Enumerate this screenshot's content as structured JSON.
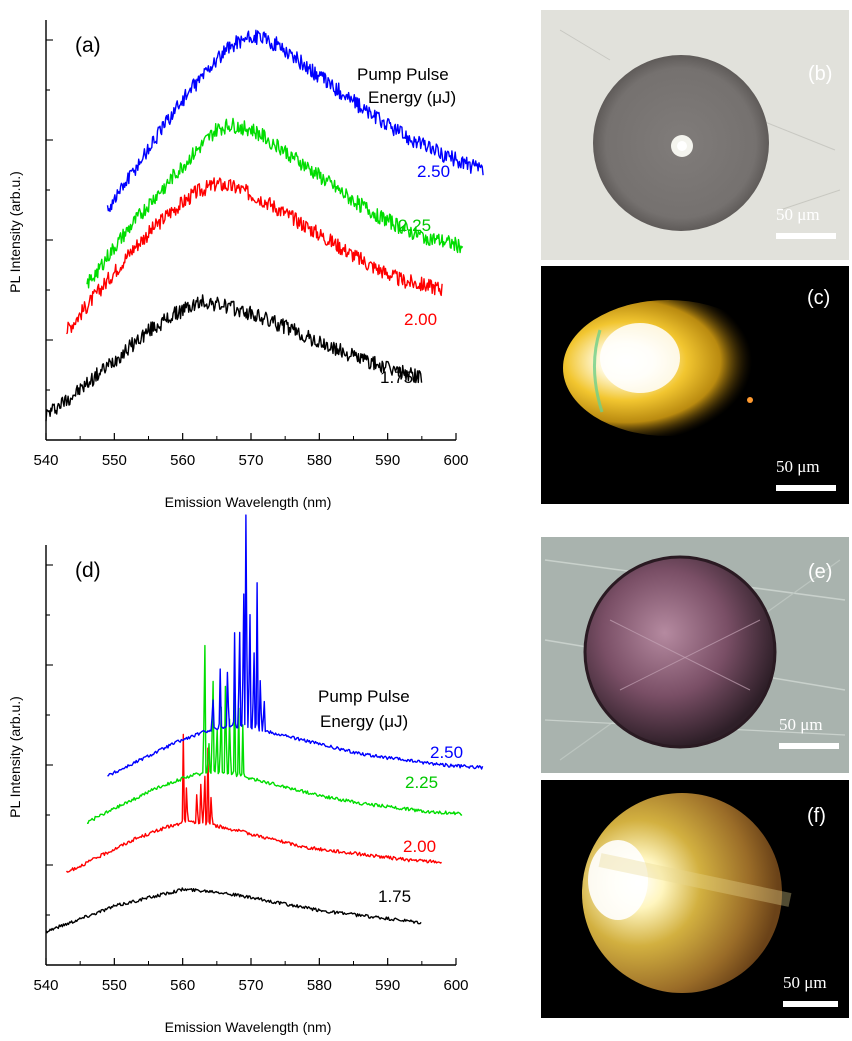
{
  "chart_data": [
    {
      "panel": "(a)",
      "type": "line",
      "xlabel": "Emission Wavelength (nm)",
      "ylabel": "PL Intensity (arb.u.)",
      "xlim": [
        540,
        600
      ],
      "xticks": [
        "540",
        "550",
        "560",
        "570",
        "580",
        "590",
        "600"
      ],
      "legend_title": [
        "Pump Pulse",
        "Energy (μJ)"
      ],
      "series": [
        {
          "name": "1.75",
          "color": "#000000",
          "x": [
            540,
            545,
            550,
            555,
            560,
            563,
            566,
            570,
            575,
            580,
            585,
            590,
            595
          ],
          "y": [
            0.06,
            0.12,
            0.19,
            0.26,
            0.31,
            0.33,
            0.32,
            0.3,
            0.27,
            0.23,
            0.2,
            0.17,
            0.15
          ]
        },
        {
          "name": "2.00",
          "color": "#ff0000",
          "x": [
            543,
            548,
            553,
            558,
            562,
            565,
            568,
            572,
            577,
            582,
            587,
            592,
            598
          ],
          "y": [
            0.26,
            0.36,
            0.46,
            0.54,
            0.59,
            0.61,
            0.6,
            0.57,
            0.52,
            0.47,
            0.42,
            0.38,
            0.36
          ]
        },
        {
          "name": "2.25",
          "color": "#00dd00",
          "x": [
            546,
            551,
            556,
            561,
            565,
            567,
            570,
            574,
            579,
            584,
            589,
            594,
            601
          ],
          "y": [
            0.37,
            0.48,
            0.58,
            0.67,
            0.74,
            0.75,
            0.74,
            0.7,
            0.64,
            0.58,
            0.53,
            0.49,
            0.46
          ]
        },
        {
          "name": "2.50",
          "color": "#0000ff",
          "x": [
            549,
            554,
            559,
            564,
            568,
            571,
            574,
            578,
            583,
            588,
            593,
            598,
            604
          ],
          "y": [
            0.55,
            0.67,
            0.79,
            0.89,
            0.95,
            0.96,
            0.94,
            0.89,
            0.83,
            0.77,
            0.72,
            0.68,
            0.64
          ]
        }
      ]
    },
    {
      "panel": "(d)",
      "type": "line",
      "xlabel": "Emission Wavelength (nm)",
      "ylabel": "PL Intensity (arb.u.)",
      "xlim": [
        540,
        600
      ],
      "xticks": [
        "540",
        "550",
        "560",
        "570",
        "580",
        "590",
        "600"
      ],
      "legend_title": [
        "Pump Pulse",
        "Energy (μJ)"
      ],
      "series": [
        {
          "name": "1.75",
          "color": "#000000",
          "x": [
            540,
            545,
            550,
            555,
            560,
            565,
            570,
            575,
            580,
            585,
            590,
            595
          ],
          "y": [
            0.08,
            0.11,
            0.14,
            0.16,
            0.18,
            0.175,
            0.16,
            0.145,
            0.13,
            0.12,
            0.11,
            0.1
          ],
          "peaks": []
        },
        {
          "name": "2.00",
          "color": "#ff0000",
          "x": [
            543,
            548,
            553,
            558,
            561,
            564,
            568,
            573,
            578,
            583,
            588,
            593,
            598
          ],
          "y": [
            0.22,
            0.26,
            0.3,
            0.33,
            0.34,
            0.335,
            0.32,
            0.3,
            0.28,
            0.27,
            0.26,
            0.25,
            0.245
          ],
          "peaks": [
            [
              560.1,
              0.21
            ],
            [
              560.6,
              0.12
            ],
            [
              562.1,
              0.1
            ],
            [
              562.7,
              0.13
            ],
            [
              563.2,
              0.16
            ],
            [
              563.7,
              0.18
            ],
            [
              564.2,
              0.09
            ]
          ]
        },
        {
          "name": "2.25",
          "color": "#00dd00",
          "x": [
            546,
            551,
            556,
            561,
            564,
            567,
            571,
            576,
            581,
            586,
            591,
            596,
            601
          ],
          "y": [
            0.34,
            0.38,
            0.42,
            0.45,
            0.46,
            0.455,
            0.44,
            0.42,
            0.4,
            0.385,
            0.375,
            0.365,
            0.36
          ],
          "peaks": [
            [
              563.2,
              0.43
            ],
            [
              563.8,
              0.1
            ],
            [
              564.4,
              0.31
            ],
            [
              565.0,
              0.15
            ],
            [
              565.6,
              0.22
            ],
            [
              566.3,
              0.29
            ],
            [
              566.9,
              0.18
            ],
            [
              567.6,
              0.23
            ],
            [
              568.2,
              0.16
            ],
            [
              568.8,
              0.12
            ]
          ]
        },
        {
          "name": "2.50",
          "color": "#0000ff",
          "x": [
            549,
            554,
            559,
            564,
            567,
            570,
            574,
            579,
            584,
            589,
            594,
            599,
            604
          ],
          "y": [
            0.45,
            0.49,
            0.53,
            0.56,
            0.57,
            0.565,
            0.55,
            0.53,
            0.51,
            0.495,
            0.485,
            0.475,
            0.47
          ],
          "peaks": [
            [
              564.4,
              0.1
            ],
            [
              565.5,
              0.14
            ],
            [
              566.6,
              0.18
            ],
            [
              567.6,
              0.22
            ],
            [
              568.3,
              0.32
            ],
            [
              568.9,
              0.45
            ],
            [
              569.3,
              0.72
            ],
            [
              569.8,
              0.38
            ],
            [
              570.4,
              0.25
            ],
            [
              570.9,
              0.35
            ],
            [
              571.4,
              0.17
            ],
            [
              571.9,
              0.1
            ]
          ]
        }
      ]
    }
  ],
  "photos": {
    "b": {
      "label": "(b)",
      "scale": "50  μm"
    },
    "c": {
      "label": "(c)",
      "scale": "50  μm"
    },
    "e": {
      "label": "(e)",
      "scale": "50 μm"
    },
    "f": {
      "label": "(f)",
      "scale": "50 μm"
    }
  }
}
